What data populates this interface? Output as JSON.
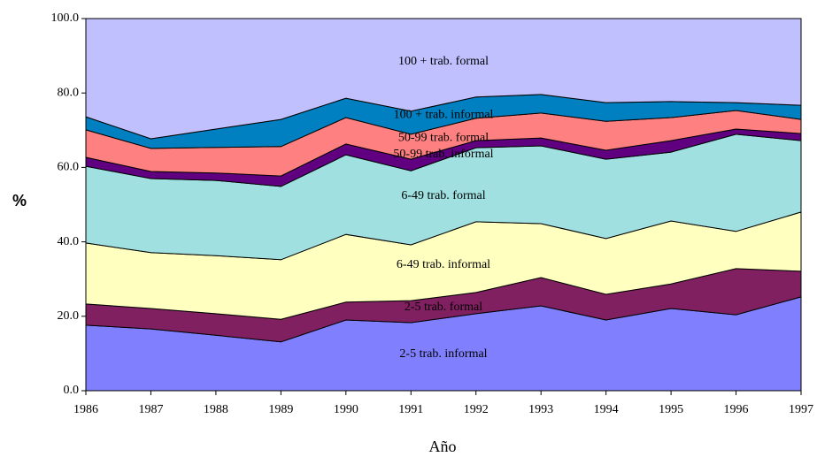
{
  "chart_data": {
    "type": "stacked-area",
    "x": [
      1986,
      1987,
      1988,
      1989,
      1990,
      1991,
      1992,
      1993,
      1994,
      1995,
      1996,
      1997
    ],
    "xlim": [
      1986,
      1997
    ],
    "xticks": [
      1986,
      1987,
      1988,
      1989,
      1990,
      1991,
      1992,
      1993,
      1994,
      1995,
      1996,
      1997
    ],
    "ylim": [
      0,
      100
    ],
    "yticks": [
      {
        "value": 0,
        "label": "0.0"
      },
      {
        "value": 20,
        "label": "20.0"
      },
      {
        "value": 40,
        "label": "40.0"
      },
      {
        "value": 60,
        "label": "60.0"
      },
      {
        "value": 80,
        "label": "80.0"
      },
      {
        "value": 100,
        "label": "100.0"
      }
    ],
    "ylabel": "%",
    "xlabel": "Año",
    "series": [
      {
        "name": "2-5 trab. informal",
        "color": "#8080ff",
        "values": [
          17.6,
          16.6,
          14.9,
          13.1,
          19.0,
          18.3,
          20.7,
          22.8,
          19.0,
          22.1,
          20.4,
          25.2
        ]
      },
      {
        "name": "2-5 trab. formal",
        "color": "#802060",
        "values": [
          5.7,
          5.5,
          5.8,
          6.1,
          4.8,
          5.9,
          5.7,
          7.6,
          6.9,
          6.6,
          12.4,
          6.9
        ]
      },
      {
        "name": "6-49 trab. informal",
        "color": "#ffffc0",
        "values": [
          16.4,
          15.0,
          15.6,
          16.0,
          18.2,
          15.0,
          19.0,
          14.5,
          15.0,
          16.9,
          10.0,
          15.9
        ]
      },
      {
        "name": "6-49 trab. formal",
        "color": "#a0e0e0",
        "values": [
          20.6,
          19.9,
          20.2,
          19.7,
          21.4,
          19.9,
          19.9,
          20.9,
          21.3,
          18.5,
          26.1,
          19.2
        ]
      },
      {
        "name": "50-99 trab. informal",
        "color": "#600080",
        "values": [
          2.4,
          1.9,
          2.0,
          2.8,
          2.9,
          3.1,
          1.9,
          2.1,
          2.4,
          3.1,
          1.4,
          1.9
        ]
      },
      {
        "name": "50-99 trab. formal",
        "color": "#ff8080",
        "values": [
          7.4,
          6.2,
          6.9,
          7.9,
          7.1,
          6.7,
          6.0,
          6.7,
          7.8,
          6.2,
          5.0,
          3.8
        ]
      },
      {
        "name": "100 + trab. informal",
        "color": "#0080c0",
        "values": [
          3.5,
          2.6,
          4.9,
          7.3,
          5.2,
          6.2,
          5.7,
          5.0,
          5.0,
          4.3,
          2.1,
          3.8
        ]
      },
      {
        "name": "100 + trab. formal",
        "color": "#c0c0ff",
        "values": [
          26.4,
          32.3,
          29.7,
          27.1,
          21.4,
          24.9,
          21.1,
          20.4,
          22.6,
          22.3,
          22.6,
          23.3
        ]
      }
    ]
  }
}
